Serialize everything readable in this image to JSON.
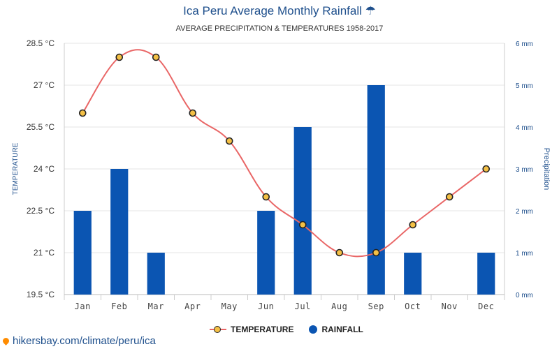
{
  "header": {
    "title": "Ica Peru Average Monthly Rainfall ☂",
    "subtitle": "AVERAGE PRECIPITATION & TEMPERATURES 1958-2017"
  },
  "legend": {
    "temperature_label": "TEMPERATURE",
    "rainfall_label": "RAINFALL"
  },
  "footer": {
    "url": "hikersbay.com/climate/peru/ica"
  },
  "colors": {
    "bar": "#0b55b2",
    "line": "#e96666",
    "marker_fill": "#f4c045",
    "marker_stroke": "#222222",
    "grid": "#e6e6e6"
  },
  "chart_data": {
    "type": "bar+line",
    "categories": [
      "Jan",
      "Feb",
      "Mar",
      "Apr",
      "May",
      "Jun",
      "Jul",
      "Aug",
      "Sep",
      "Oct",
      "Nov",
      "Dec"
    ],
    "series": [
      {
        "name": "TEMPERATURE",
        "type": "line",
        "axis": "left",
        "values": [
          26,
          28,
          28,
          26,
          25,
          23,
          22,
          21,
          21,
          22,
          23,
          24
        ]
      },
      {
        "name": "RAINFALL",
        "type": "bar",
        "axis": "right",
        "values": [
          2,
          3,
          1,
          0,
          0,
          2,
          4,
          0,
          5,
          1,
          0,
          1
        ]
      }
    ],
    "y_left": {
      "label": "TEMPERATURE",
      "range": [
        19.5,
        28.5
      ],
      "ticks": [
        19.5,
        21,
        22.5,
        24,
        25.5,
        27,
        28.5
      ],
      "tick_labels": [
        "19.5 °C",
        "21 °C",
        "22.5 °C",
        "24 °C",
        "25.5 °C",
        "27 °C",
        "28.5 °C"
      ]
    },
    "y_right": {
      "label": "Precipitation",
      "range": [
        0,
        6
      ],
      "ticks": [
        0,
        1,
        2,
        3,
        4,
        5,
        6
      ],
      "tick_labels": [
        "0 mm",
        "1 mm",
        "2 mm",
        "3 mm",
        "4 mm",
        "5 mm",
        "6 mm"
      ]
    },
    "grid": true,
    "legend_position": "bottom-center"
  }
}
